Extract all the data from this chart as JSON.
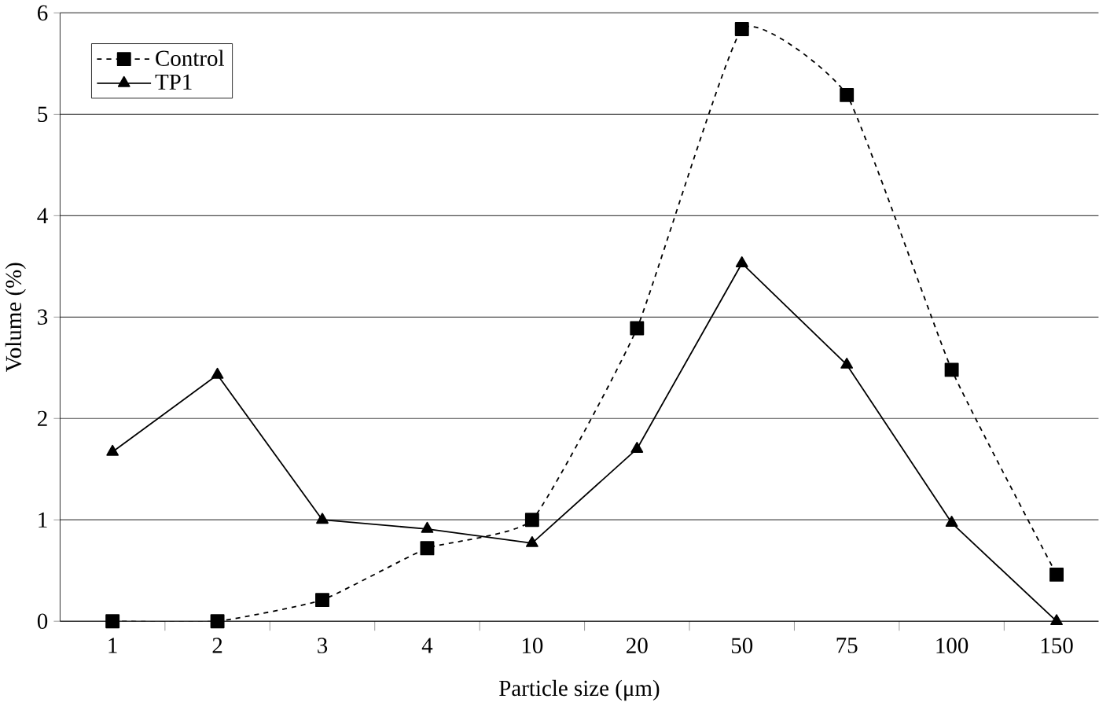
{
  "chart_data": {
    "type": "line",
    "xlabel": "Particle size (μm)",
    "ylabel": "Volume (%)",
    "categories": [
      "1",
      "2",
      "3",
      "4",
      "10",
      "20",
      "50",
      "75",
      "100",
      "150"
    ],
    "series": [
      {
        "name": "Control",
        "color": "#000000",
        "marker": "square",
        "line_style": "dashed",
        "values": [
          0,
          0,
          0.21,
          0.72,
          1.0,
          2.89,
          5.84,
          5.19,
          2.48,
          0.46
        ]
      },
      {
        "name": "TP1",
        "color": "#000000",
        "marker": "triangle",
        "line_style": "solid",
        "values": [
          1.67,
          2.43,
          1.0,
          0.91,
          0.77,
          1.7,
          3.53,
          2.53,
          0.97,
          0
        ]
      }
    ],
    "ylim": [
      0,
      6
    ],
    "yticks": [
      0,
      1,
      2,
      3,
      4,
      5,
      6
    ],
    "grid": "y",
    "legend": "top left"
  }
}
